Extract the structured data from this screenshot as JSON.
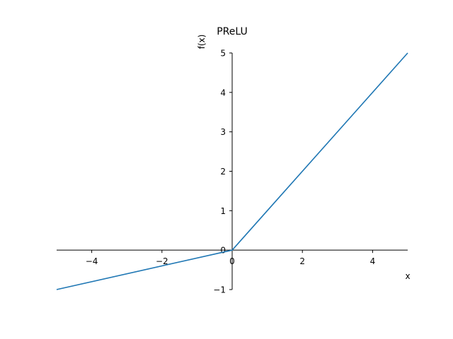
{
  "chart_data": {
    "type": "line",
    "title": "PReLU",
    "xlabel": "x",
    "ylabel": "f(x)",
    "xlim": [
      -5,
      5
    ],
    "ylim": [
      -1,
      5
    ],
    "xticks": [
      -4,
      -2,
      0,
      2,
      4
    ],
    "xtick_labels": [
      "−4",
      "−2",
      "0",
      "2",
      "4"
    ],
    "yticks": [
      -1,
      0,
      1,
      2,
      3,
      4,
      5
    ],
    "ytick_labels": [
      "−1",
      "0",
      "1",
      "2",
      "3",
      "4",
      "5"
    ],
    "grid": false,
    "spines": "centered at origin",
    "series": [
      {
        "color": "#1f77b4",
        "x": [
          -5,
          0,
          5
        ],
        "y": [
          -1,
          0,
          5
        ]
      }
    ]
  }
}
